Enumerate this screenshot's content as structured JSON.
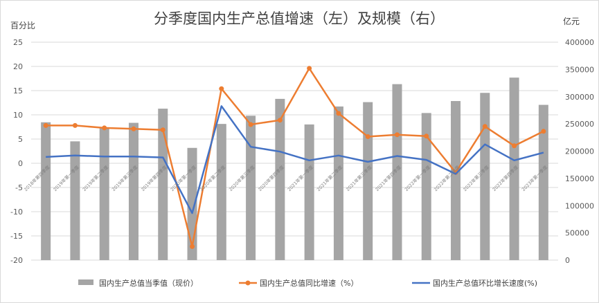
{
  "chart_data": {
    "type": "bar",
    "title": "分季度国内生产总值增速（左）及规模（右）",
    "y_left_unit": "百分比",
    "y_right_unit": "亿元",
    "y_left_lim": [
      -20,
      25
    ],
    "y_left_ticks": [
      "25",
      "20",
      "15",
      "10",
      "5",
      "0",
      "-5",
      "-10",
      "-15",
      "-20"
    ],
    "y_right_lim": [
      0,
      400000
    ],
    "y_right_ticks": [
      "400000",
      "350000",
      "300000",
      "250000",
      "200000",
      "150000",
      "100000",
      "50000",
      "0"
    ],
    "grid": true,
    "legend_position": "bottom",
    "categories": [
      "2018年第四季度",
      "2019年第一季度",
      "2019年第二季度",
      "2019年第三季度",
      "2019年第四季度",
      "2020年第一季度",
      "2020年第二季度",
      "2020年第三季度",
      "2020年第四季度",
      "2021年第一季度",
      "2021年第二季度",
      "2021年第三季度",
      "2021年第四季度",
      "2022年第一季度",
      "2022年第二季度",
      "2022年第三季度",
      "2022年第四季度",
      "2023年第一季度"
    ],
    "series": [
      {
        "name": "国内生产总值当季值（现价）",
        "type": "bar",
        "axis": "right",
        "color": "#a5a5a5",
        "values": [
          253000,
          218000,
          243000,
          252000,
          278000,
          206000,
          250000,
          265000,
          296000,
          249000,
          282000,
          290000,
          323000,
          270000,
          292000,
          307000,
          335000,
          285000
        ]
      },
      {
        "name": "国内生产总值同比增速（%）",
        "type": "line",
        "axis": "left",
        "color": "#ed7d31",
        "marker": "circle",
        "values": [
          7.8,
          7.8,
          7.3,
          7.1,
          6.9,
          -17.2,
          15.4,
          8.0,
          8.9,
          19.6,
          10.3,
          5.5,
          5.9,
          5.6,
          -1.9,
          7.6,
          3.6,
          6.6
        ]
      },
      {
        "name": "国内生产总值环比增长速度(%)",
        "type": "line",
        "axis": "left",
        "color": "#4472c4",
        "marker": "none",
        "values": [
          1.3,
          1.6,
          1.4,
          1.4,
          1.2,
          -10.3,
          11.8,
          3.4,
          2.4,
          0.6,
          1.6,
          0.3,
          1.5,
          0.7,
          -2.2,
          3.9,
          0.6,
          2.2
        ]
      }
    ]
  }
}
